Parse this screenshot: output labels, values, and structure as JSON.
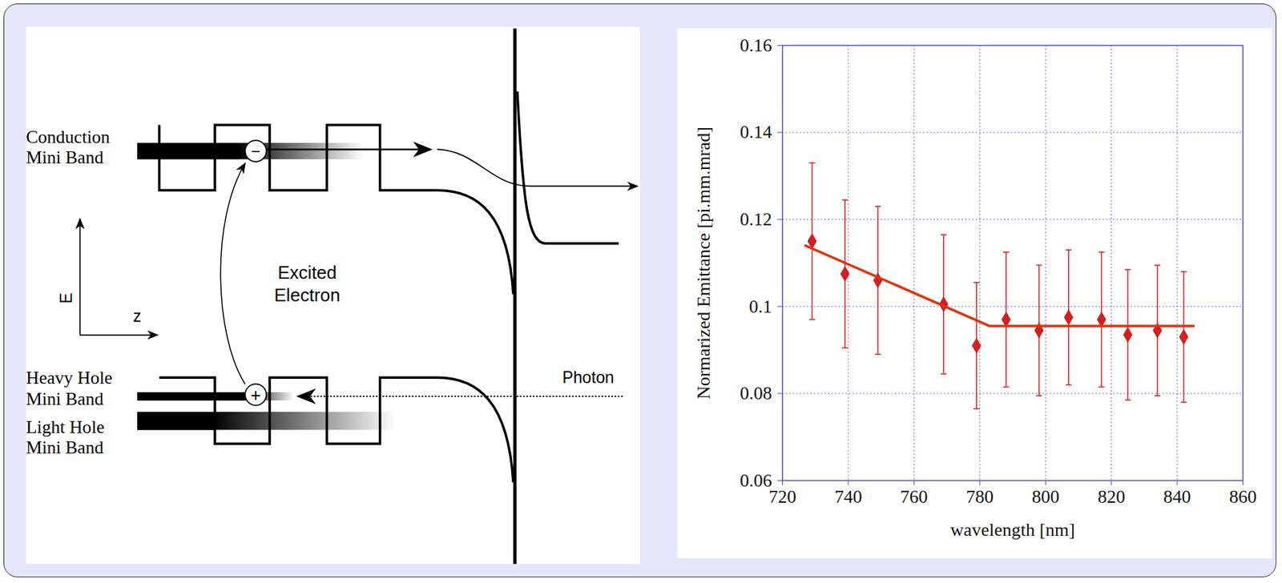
{
  "chart_data": {
    "type": "scatter",
    "xlabel": "wavelength [nm]",
    "ylabel": "Normarized Emittance [pi.mm.mrad]",
    "xlim": [
      720,
      860
    ],
    "xticks": [
      720,
      740,
      760,
      780,
      800,
      820,
      840,
      860
    ],
    "ylim": [
      0.06,
      0.16
    ],
    "yticks": [
      0.06,
      0.08,
      0.1,
      0.12,
      0.14,
      0.16
    ],
    "grid": true,
    "series": [
      {
        "type": "scatter",
        "marker": "diamond",
        "color": "#d41f1f",
        "x": [
          729,
          739,
          749,
          769,
          779,
          788,
          798,
          807,
          817,
          825,
          834,
          842
        ],
        "values": [
          0.115,
          0.1075,
          0.106,
          0.1005,
          0.091,
          0.097,
          0.0945,
          0.0975,
          0.097,
          0.0935,
          0.0945,
          0.093
        ],
        "errors": [
          0.018,
          0.017,
          0.017,
          0.016,
          0.0145,
          0.0155,
          0.015,
          0.0155,
          0.0155,
          0.015,
          0.015,
          0.015
        ]
      },
      {
        "type": "line",
        "line_style": "solid",
        "color": "#e0330f",
        "x": [
          727,
          783,
          845
        ],
        "values": [
          0.114,
          0.0955,
          0.0955
        ]
      }
    ]
  },
  "diagram": {
    "bands": [
      {
        "label": [
          "Conduction",
          "Mini Band"
        ]
      },
      {
        "label": [
          "Heavy Hole",
          "Mini Band"
        ]
      },
      {
        "label": [
          "Light Hole",
          "Mini Band"
        ]
      }
    ],
    "electron_symbol": "−",
    "hole_symbol": "+",
    "transition_label": [
      "Excited",
      "Electron"
    ],
    "photon_label": "Photon",
    "axes": {
      "vertical": "E",
      "horizontal": "z"
    }
  }
}
